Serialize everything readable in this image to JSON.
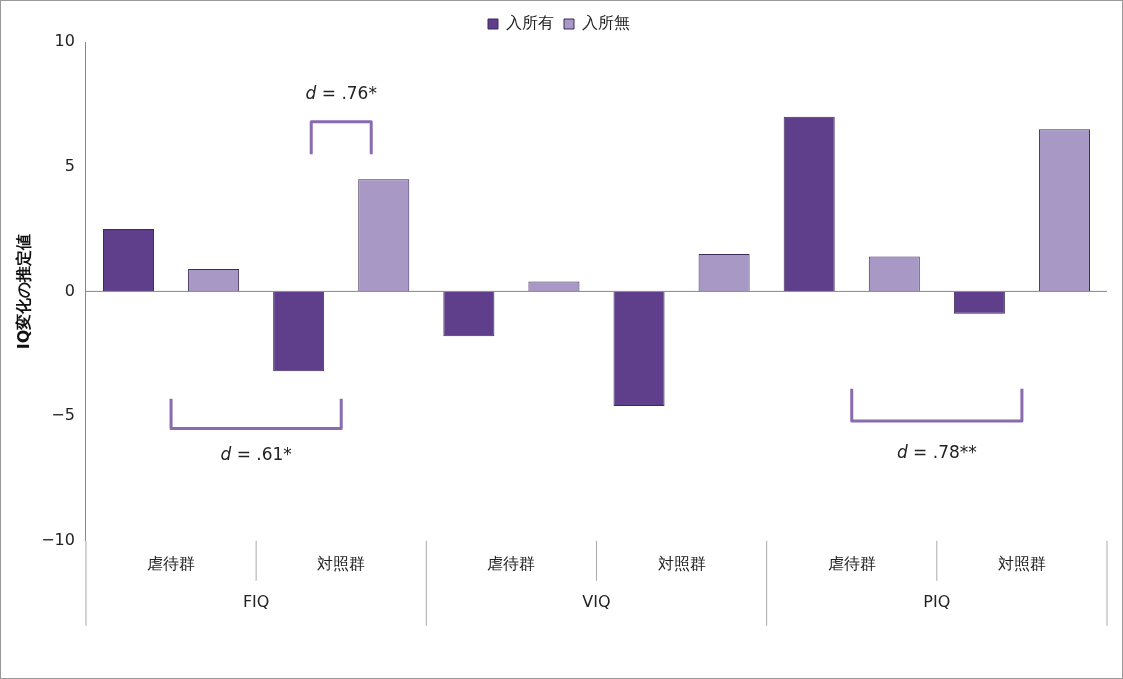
{
  "chart_data": {
    "type": "bar",
    "ylabel": "IQ変化の推定値",
    "categories": [
      "虐待群",
      "対照群",
      "虐待群",
      "対照群",
      "虐待群",
      "対照群"
    ],
    "series": [
      {
        "name": "入所有",
        "color": "#5f3f8c",
        "values": [
          2.5,
          -3.2,
          -1.8,
          -4.6,
          7.0,
          -0.9
        ]
      },
      {
        "name": "入所無",
        "color": "#a898c6",
        "values": [
          0.9,
          4.5,
          0.4,
          1.5,
          1.4,
          6.5
        ]
      }
    ],
    "ref_lines": [
      {
        "axis": "y",
        "value": 0,
        "color": "#888888"
      }
    ],
    "ylim": [
      -10,
      10
    ],
    "yticks": [
      -10,
      -5,
      0,
      5,
      10
    ],
    "grid": false,
    "legend": "top",
    "annotations": [
      "FIQ",
      "VIQ",
      "PIQ",
      "d = .61*",
      "d = .76*",
      "d = .78**"
    ]
  }
}
